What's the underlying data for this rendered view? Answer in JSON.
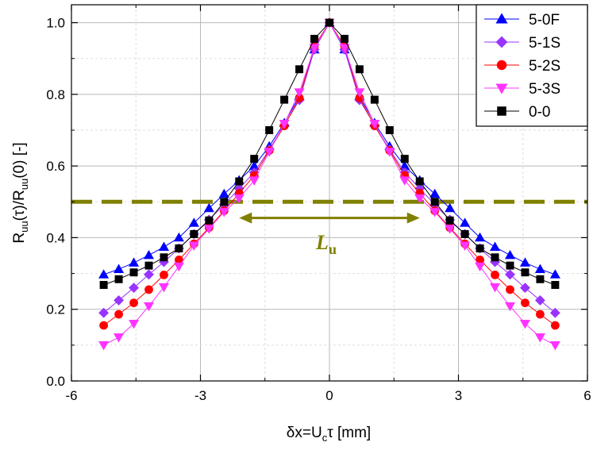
{
  "chart_data": {
    "type": "line",
    "title": "",
    "xlabel": "δx=U",
    "xlabel_sub": "c",
    "xlabel_tail": "τ [mm]",
    "ylabel": {
      "a": "R",
      "a_sub": "uu",
      "b": "(τ)/R",
      "b_sub": "uu",
      "c": "(0) [-]"
    },
    "xlim": [
      -6,
      6
    ],
    "ylim": [
      0.0,
      1.05
    ],
    "xticks": [
      "-6",
      "-3",
      "0",
      "3",
      "6"
    ],
    "xtick_values": [
      -6,
      -3,
      0,
      3,
      6
    ],
    "yticks": [
      "0.0",
      "0.2",
      "0.4",
      "0.6",
      "0.8",
      "1.0"
    ],
    "ytick_values": [
      0.0,
      0.2,
      0.4,
      0.6,
      0.8,
      1.0
    ],
    "grid": true,
    "legend_position": "top-right",
    "x": [
      -5.25,
      -4.9,
      -4.55,
      -4.2,
      -3.85,
      -3.5,
      -3.15,
      -2.8,
      -2.45,
      -2.1,
      -1.75,
      -1.4,
      -1.05,
      -0.7,
      -0.35,
      0,
      0.35,
      0.7,
      1.05,
      1.4,
      1.75,
      2.1,
      2.45,
      2.8,
      3.15,
      3.5,
      3.85,
      4.2,
      4.55,
      4.9,
      5.25
    ],
    "series": [
      {
        "name": "5-0F",
        "color": "#0000ff",
        "marker": "triangle-up",
        "values": [
          0.297,
          0.312,
          0.33,
          0.351,
          0.374,
          0.4,
          0.441,
          0.482,
          0.522,
          0.56,
          0.6,
          0.655,
          0.72,
          0.795,
          0.925,
          1.0,
          0.925,
          0.795,
          0.72,
          0.655,
          0.6,
          0.56,
          0.522,
          0.482,
          0.441,
          0.4,
          0.374,
          0.351,
          0.33,
          0.312,
          0.297
        ]
      },
      {
        "name": "5-1S",
        "color": "#9933ff",
        "marker": "diamond",
        "values": [
          0.19,
          0.225,
          0.26,
          0.297,
          0.332,
          0.37,
          0.41,
          0.45,
          0.492,
          0.537,
          0.582,
          0.646,
          0.714,
          0.784,
          0.925,
          1.0,
          0.925,
          0.784,
          0.714,
          0.646,
          0.582,
          0.537,
          0.492,
          0.45,
          0.41,
          0.37,
          0.332,
          0.297,
          0.26,
          0.225,
          0.19
        ]
      },
      {
        "name": "5-2S",
        "color": "#ff0000",
        "marker": "circle",
        "values": [
          0.155,
          0.186,
          0.218,
          0.255,
          0.296,
          0.338,
          0.383,
          0.428,
          0.475,
          0.524,
          0.573,
          0.643,
          0.712,
          0.79,
          0.935,
          1.0,
          0.935,
          0.79,
          0.712,
          0.643,
          0.573,
          0.524,
          0.475,
          0.428,
          0.383,
          0.338,
          0.296,
          0.255,
          0.218,
          0.186,
          0.155
        ]
      },
      {
        "name": "5-3S",
        "color": "#ff33ff",
        "marker": "triangle-down",
        "values": [
          0.1,
          0.122,
          0.16,
          0.209,
          0.262,
          0.32,
          0.378,
          0.425,
          0.472,
          0.51,
          0.56,
          0.64,
          0.718,
          0.806,
          0.93,
          1.0,
          0.93,
          0.806,
          0.718,
          0.64,
          0.56,
          0.51,
          0.472,
          0.425,
          0.378,
          0.32,
          0.262,
          0.209,
          0.16,
          0.122,
          0.1
        ]
      },
      {
        "name": "0-0",
        "color": "#000000",
        "marker": "square",
        "values": [
          0.268,
          0.284,
          0.303,
          0.322,
          0.345,
          0.37,
          0.41,
          0.448,
          0.5,
          0.557,
          0.62,
          0.7,
          0.785,
          0.87,
          0.955,
          1.0,
          0.955,
          0.87,
          0.785,
          0.7,
          0.62,
          0.557,
          0.5,
          0.448,
          0.41,
          0.37,
          0.345,
          0.322,
          0.303,
          0.284,
          0.268
        ]
      }
    ],
    "annotations": {
      "threshold_line": {
        "y": 0.5,
        "color": "#808000",
        "style": "dashed"
      },
      "length_arrow": {
        "x_from": -2.1,
        "x_to": 2.1,
        "y": 0.455,
        "color": "#808000"
      },
      "length_label": {
        "text": "L",
        "sub": "u",
        "color": "#808000",
        "x": 0,
        "y": 0.39
      }
    }
  }
}
